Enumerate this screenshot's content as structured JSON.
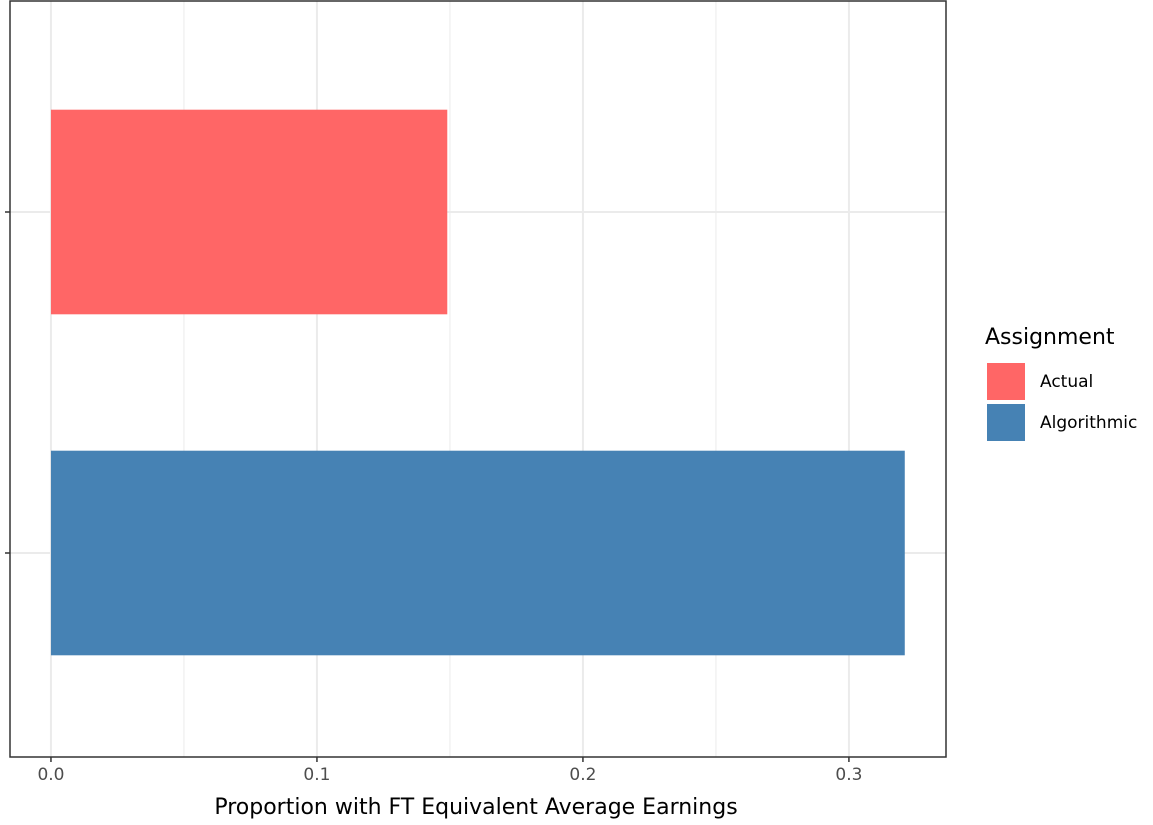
{
  "chart_data": {
    "type": "bar",
    "orientation": "horizontal",
    "x_label": "Proportion with FT Equivalent Average Earnings",
    "legend_title": "Assignment",
    "categories": [
      null,
      null
    ],
    "series": [
      {
        "name": "Actual",
        "color": "#ff6666",
        "values": [
          0.149,
          null
        ]
      },
      {
        "name": "Algorithmic",
        "color": "#4682b4",
        "values": [
          null,
          0.321
        ]
      }
    ],
    "xlim": [
      -0.0154,
      0.3365
    ],
    "xticks": [
      {
        "value": 0,
        "label": "0.0"
      },
      0.1,
      0.2,
      0.3
    ],
    "grid": true,
    "legend": "right"
  }
}
